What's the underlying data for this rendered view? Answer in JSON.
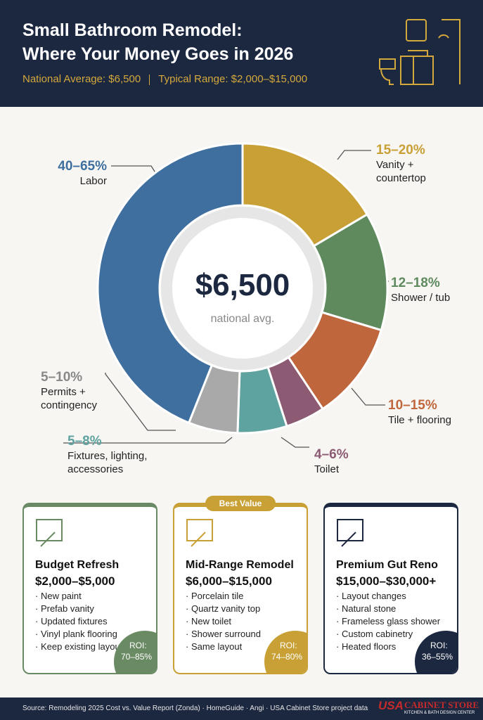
{
  "header": {
    "title_line1": "Small Bathroom Remodel:",
    "title_line2": "Where Your Money Goes in 2026",
    "average": "National Average: $6,500",
    "range": "Typical Range: $2,000–$15,000"
  },
  "chart_data": {
    "type": "donut",
    "center_label": "$6,500",
    "center_sublabel": "national avg.",
    "categories": [
      "Vanity + countertop",
      "Shower / tub",
      "Tile + flooring",
      "Toilet",
      "Fixtures, lighting, accessories",
      "Permits + contingency",
      "Labor"
    ],
    "values": [
      15,
      12,
      10,
      4,
      5,
      5,
      40
    ],
    "value_labels": [
      "15–20%",
      "12–18%",
      "10–15%",
      "4–6%",
      "5–8%",
      "5–10%",
      "40–65%"
    ],
    "colors": [
      "#c9a035",
      "#5f8a5e",
      "#c0663c",
      "#8c5a72",
      "#5fa3a0",
      "#a9a9a9",
      "#3e6f9e"
    ]
  },
  "cards": [
    {
      "name": "Budget Refresh",
      "price": "$2,000–$5,000",
      "items": [
        "New paint",
        "Prefab vanity",
        "Updated fixtures",
        "Vinyl plank flooring",
        "Keep existing layout"
      ],
      "roi_label": "ROI:",
      "roi": "70–85%"
    },
    {
      "badge": "Best Value",
      "name": "Mid-Range Remodel",
      "price": "$6,000–$15,000",
      "items": [
        "Porcelain tile",
        "Quartz vanity top",
        "New toilet",
        "Shower surround",
        "Same layout"
      ],
      "roi_label": "ROI:",
      "roi": "74–80%"
    },
    {
      "name": "Premium Gut Reno",
      "price": "$15,000–$30,000+",
      "items": [
        "Layout changes",
        "Natural stone",
        "Frameless glass shower",
        "Custom cabinetry",
        "Heated floors"
      ],
      "roi_label": "ROI:",
      "roi": "36–55%"
    }
  ],
  "footer": {
    "source": "Source: Remodeling 2025 Cost vs. Value Report (Zonda) · HomeGuide · Angi · USA Cabinet Store project data",
    "logo_mark": "USA",
    "logo_name": "CABINET STORE",
    "logo_tagline": "KITCHEN & BATH DESIGN CENTER"
  }
}
